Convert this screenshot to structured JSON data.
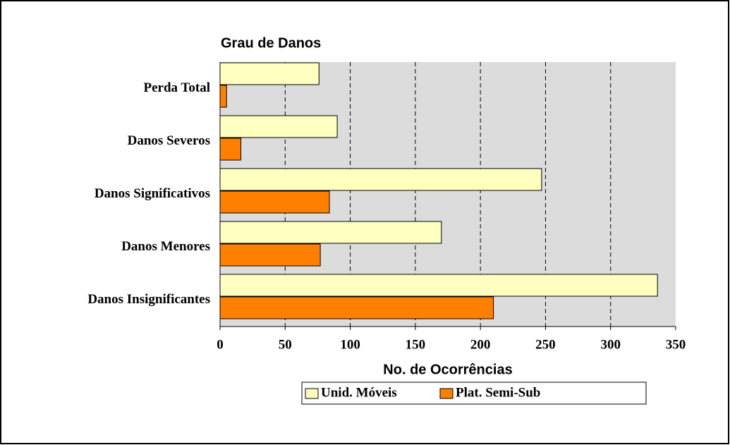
{
  "chart_data": {
    "type": "hbar",
    "title": "Grau de Danos",
    "x_label": "No. de Ocorrências",
    "categories": [
      "Perda Total",
      "Danos Severos",
      "Danos Significativos",
      "Danos Menores",
      "Danos Insignificantes"
    ],
    "series": [
      {
        "name": "Unid. Móveis",
        "color": "#ffffc0",
        "values": [
          76,
          90,
          247,
          170,
          336
        ]
      },
      {
        "name": "Plat. Semi-Sub",
        "color": "#ff8000",
        "values": [
          5,
          16,
          84,
          77,
          210
        ]
      }
    ],
    "xlim": [
      0,
      350
    ],
    "xticks": [
      0,
      50,
      100,
      150,
      200,
      250,
      300,
      350
    ],
    "grid": true,
    "legend": "bottom"
  }
}
